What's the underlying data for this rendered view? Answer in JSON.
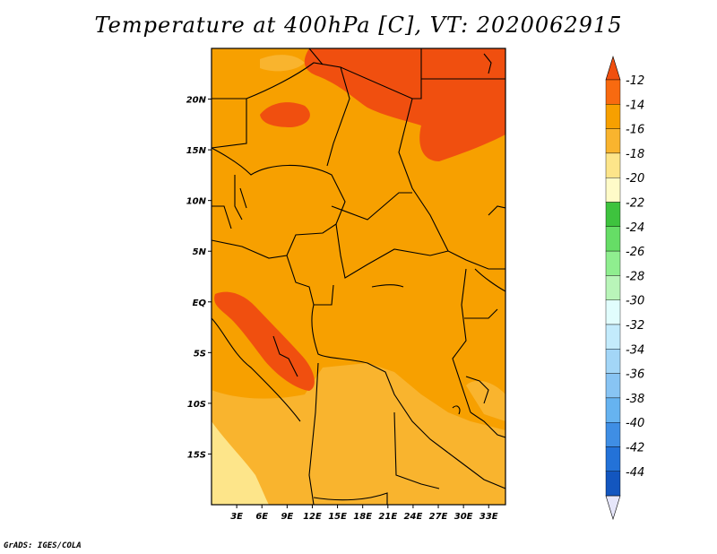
{
  "title": "Temperature at 400hPa [C], VT: 2020062915",
  "credit": "GrADS: IGES/COLA",
  "map": {
    "lon_range": [
      0,
      35
    ],
    "lat_range": [
      -20,
      25
    ],
    "x_ticks": [
      {
        "lon": 3,
        "label": "3E"
      },
      {
        "lon": 6,
        "label": "6E"
      },
      {
        "lon": 9,
        "label": "9E"
      },
      {
        "lon": 12,
        "label": "12E"
      },
      {
        "lon": 15,
        "label": "15E"
      },
      {
        "lon": 18,
        "label": "18E"
      },
      {
        "lon": 21,
        "label": "21E"
      },
      {
        "lon": 24,
        "label": "24E"
      },
      {
        "lon": 27,
        "label": "27E"
      },
      {
        "lon": 30,
        "label": "30E"
      },
      {
        "lon": 33,
        "label": "33E"
      }
    ],
    "y_ticks": [
      {
        "lat": 20,
        "label": "20N"
      },
      {
        "lat": 15,
        "label": "15N"
      },
      {
        "lat": 10,
        "label": "10N"
      },
      {
        "lat": 5,
        "label": "5N"
      },
      {
        "lat": 0,
        "label": "EQ"
      },
      {
        "lat": -5,
        "label": "5S"
      },
      {
        "lat": -10,
        "label": "10S"
      },
      {
        "lat": -15,
        "label": "15S"
      }
    ],
    "colors": {
      "c_m12": "#f04f0f",
      "c_m14": "#f7a000",
      "c_m16": "#f9b42e",
      "c_m18": "#fde58a",
      "background_fill": "#f7a000"
    }
  },
  "colorbar": {
    "top_triangle_color": "#f04f0f",
    "bottom_triangle_color": "#e6e6fa",
    "bands": [
      {
        "color": "#f86a10"
      },
      {
        "color": "#f7a000"
      },
      {
        "color": "#f9b42e"
      },
      {
        "color": "#fde58a"
      },
      {
        "color": "#fffbc8"
      },
      {
        "color": "#3ec33e"
      },
      {
        "color": "#66dd66"
      },
      {
        "color": "#8fee8f"
      },
      {
        "color": "#b9f5b9"
      },
      {
        "color": "#e1fdfd"
      },
      {
        "color": "#c3ebfc"
      },
      {
        "color": "#a3d6f7"
      },
      {
        "color": "#88c4f3"
      },
      {
        "color": "#66b3f0"
      },
      {
        "color": "#3f8ee4"
      },
      {
        "color": "#2372d8"
      },
      {
        "color": "#1356bf"
      }
    ],
    "labels": [
      "-12",
      "-14",
      "-16",
      "-18",
      "-20",
      "-22",
      "-24",
      "-26",
      "-28",
      "-30",
      "-32",
      "-34",
      "-36",
      "-38",
      "-40",
      "-42",
      "-44"
    ]
  }
}
